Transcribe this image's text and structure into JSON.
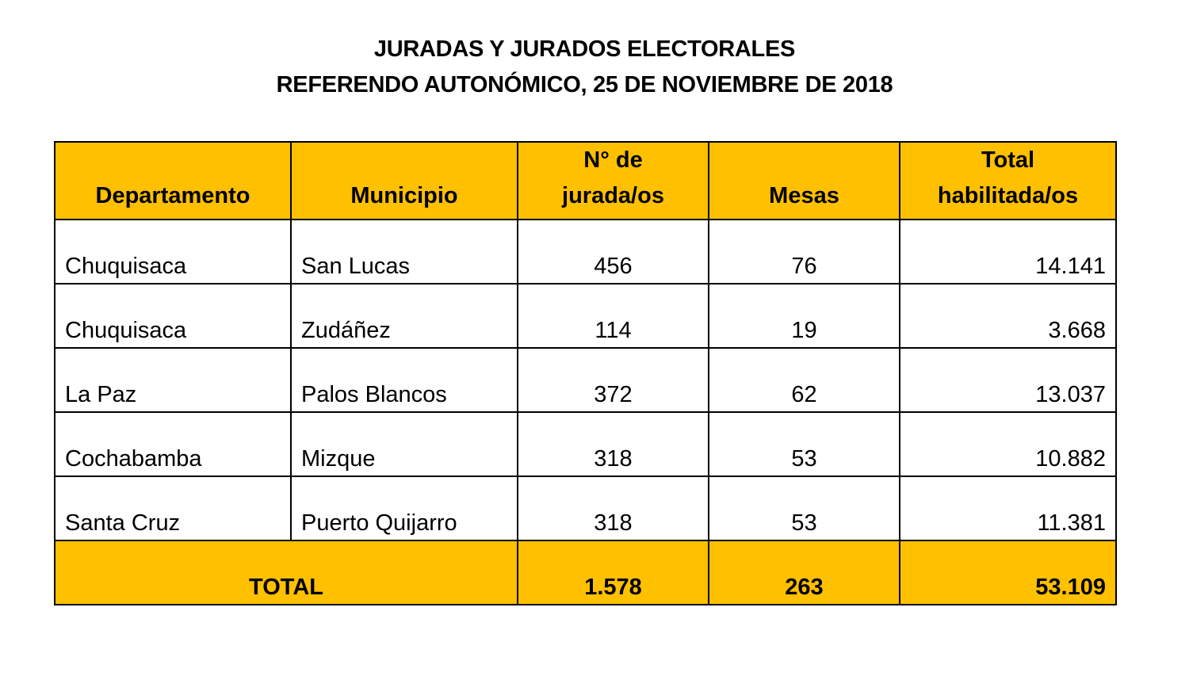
{
  "title": {
    "line1": "JURADAS Y JURADOS ELECTORALES",
    "line2": "REFERENDO AUTONÓMICO, 25 DE NOVIEMBRE DE 2018"
  },
  "table": {
    "headers": [
      "Departamento",
      "Municipio",
      "N° de jurada/os",
      "Mesas",
      "Total habilitada/os"
    ],
    "header_lines": {
      "jurados": [
        "N° de",
        "jurada/os"
      ],
      "total": [
        "Total",
        "habilitada/os"
      ]
    },
    "rows": [
      [
        "Chuquisaca",
        "San Lucas",
        "456",
        "76",
        "14.141"
      ],
      [
        "Chuquisaca",
        "Zudáñez",
        "114",
        "19",
        "3.668"
      ],
      [
        "La Paz",
        "Palos Blancos",
        "372",
        "62",
        "13.037"
      ],
      [
        "Cochabamba",
        "Mizque",
        "318",
        "53",
        "10.882"
      ],
      [
        "Santa Cruz",
        "Puerto Quijarro",
        "318",
        "53",
        "11.381"
      ]
    ],
    "total": {
      "label": "TOTAL",
      "jurados": "1.578",
      "mesas": "263",
      "habilitados": "53.109"
    }
  },
  "colors": {
    "header_bg": "#FFC000"
  }
}
